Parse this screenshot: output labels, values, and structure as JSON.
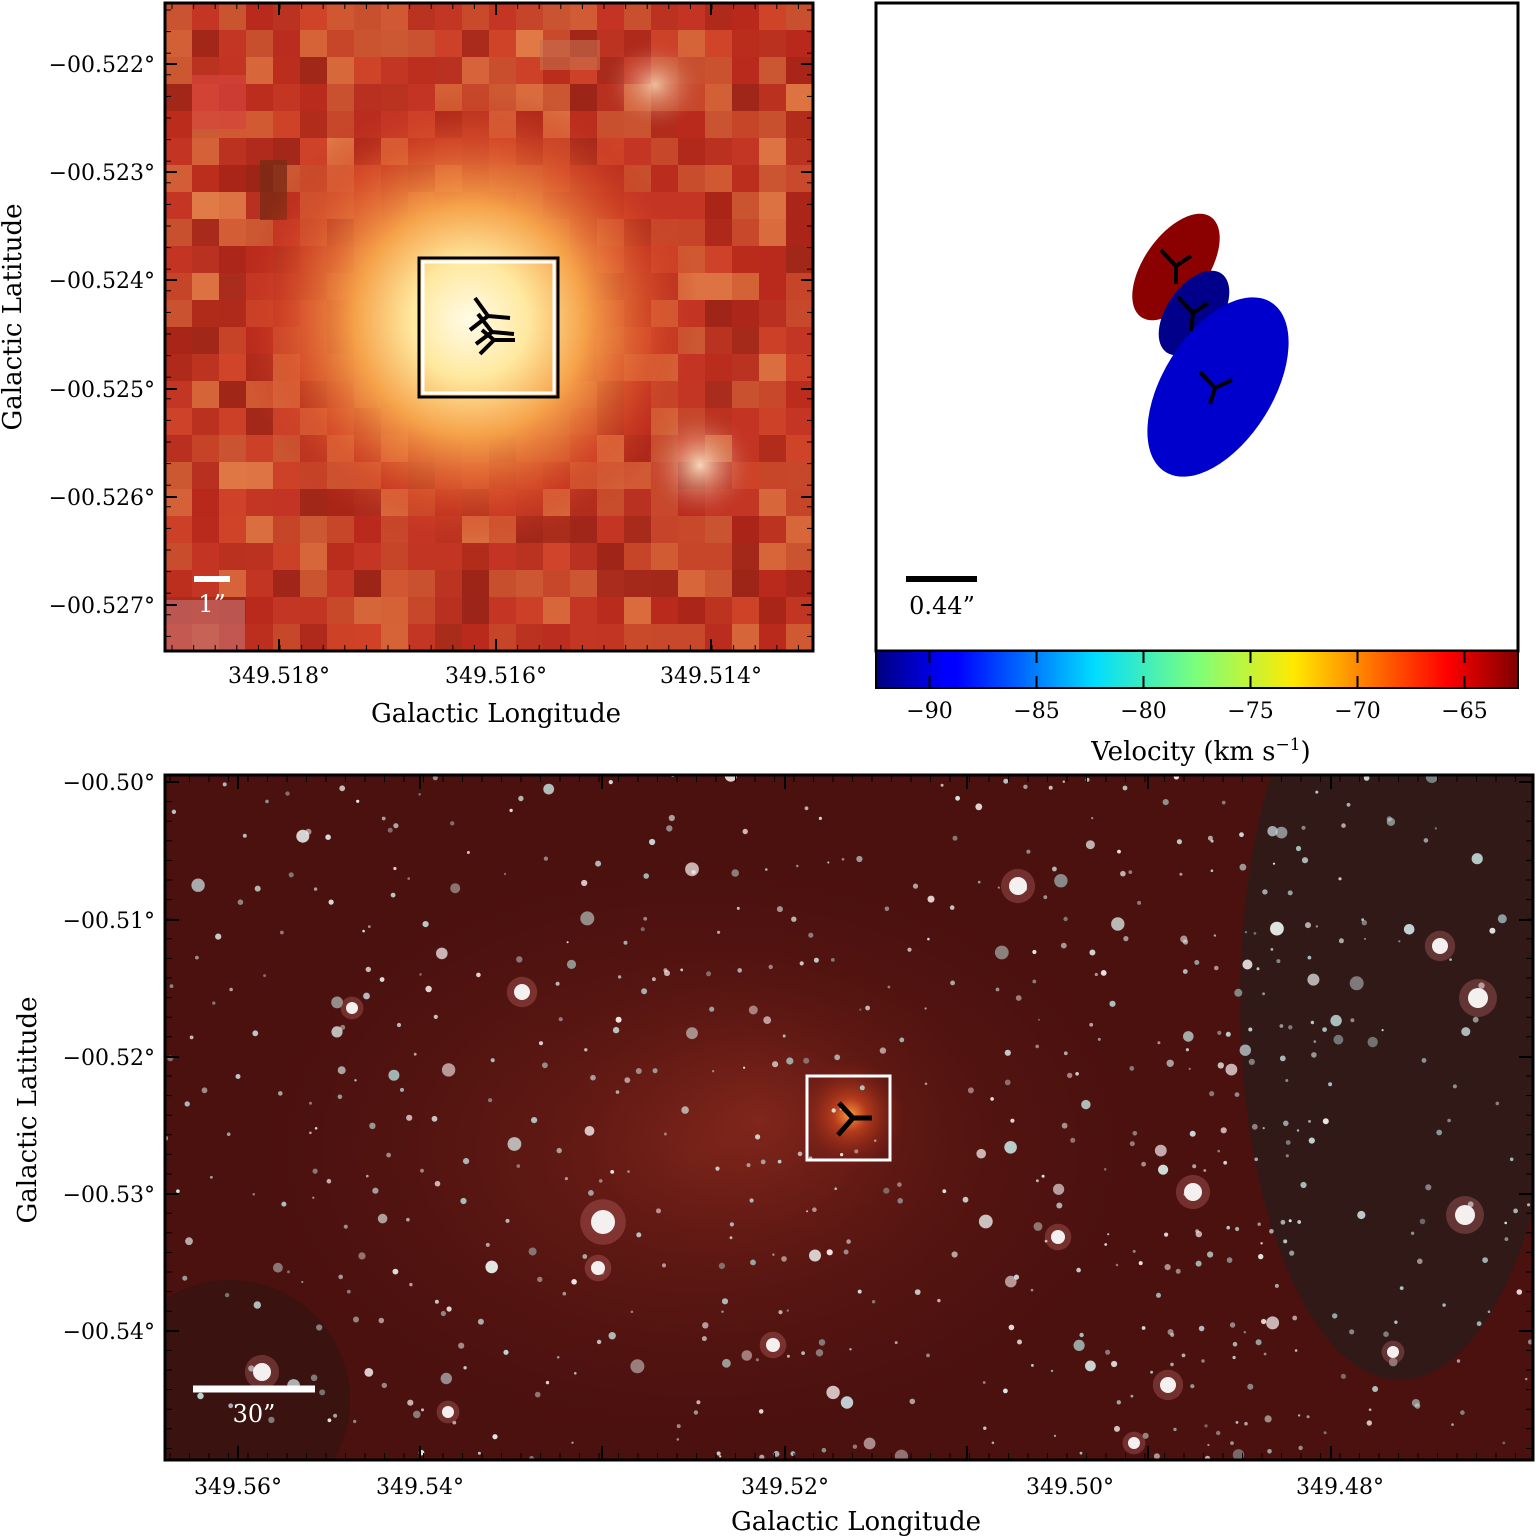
{
  "panel_a": {
    "xlabel": "Galactic Longitude",
    "ylabel": "Galactic Latitude",
    "xticks": [
      "349.518°",
      "349.516°",
      "349.514°"
    ],
    "yticks": [
      "−00.522°",
      "−00.523°",
      "−00.524°",
      "−00.525°",
      "−00.526°",
      "−00.527°"
    ],
    "scale_label": "1”",
    "colors": {
      "frame": "#000000",
      "box": "#ffffff",
      "marker": "#000000"
    }
  },
  "panel_b": {
    "scale_label": "0.44”",
    "colorbar": {
      "label_prefix": "Velocity (km s",
      "label_sup": "−1",
      "label_suffix": ")",
      "ticks": [
        "−90",
        "−85",
        "−80",
        "−75",
        "−70",
        "−65"
      ],
      "range": [
        -92.5,
        -62.5
      ]
    },
    "spots": [
      {
        "color": "#8b0000",
        "velocity": -63
      },
      {
        "color": "#00008b",
        "velocity": -92
      },
      {
        "color": "#0000cd",
        "velocity": -90
      }
    ]
  },
  "panel_c": {
    "xlabel": "Galactic Longitude",
    "ylabel": "Galactic Latitude",
    "xticks": [
      "349.56°",
      "349.54°",
      "349.52°",
      "349.50°",
      "349.48°"
    ],
    "yticks": [
      "−00.50°",
      "−00.51°",
      "−00.52°",
      "−00.53°",
      "−00.54°"
    ],
    "scale_label": "30”"
  }
}
